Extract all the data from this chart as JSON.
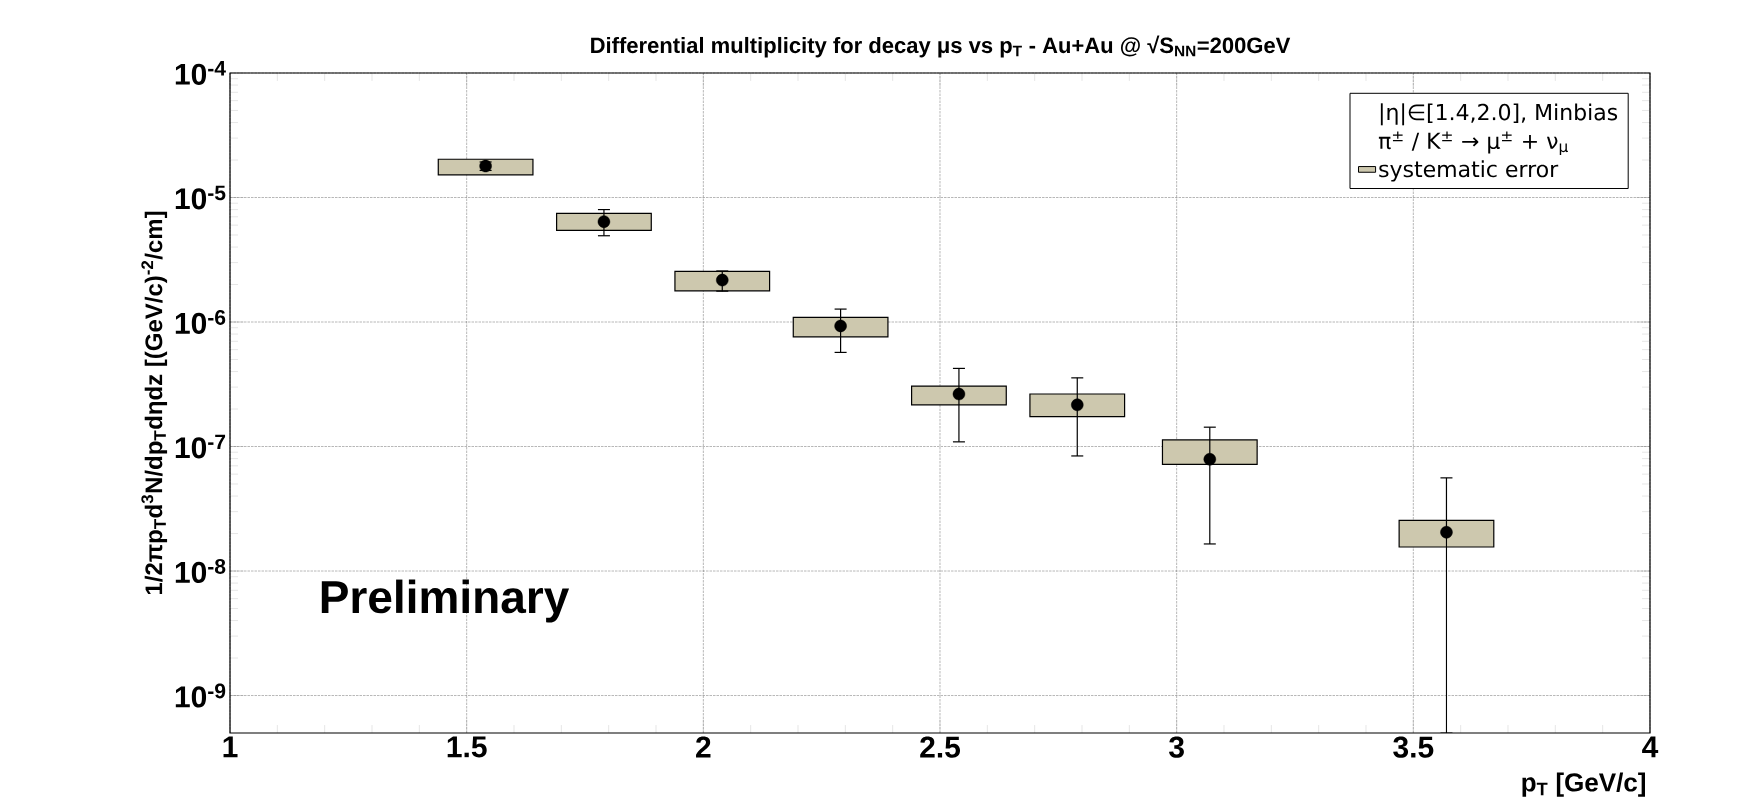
{
  "chart_data": {
    "type": "scatter",
    "title": "Differential multiplicity for decay μs vs p$_{T}$ - Au+Au @ √S$_{NN}$=200GeV",
    "xlabel": "p$_{T}$ [GeV/c]",
    "ylabel": "1/2πp$_{T}$d$^{3}$N/dp$_{T}$dηdz [(GeV/c)$^{-2}$/cm]",
    "annotations": [
      "|η|∈[1.4,2.0], Minbias",
      "π$^{±}$ / K$^{±}$ → μ$^{±}$ + ν$_{μ}$",
      "Preliminary"
    ],
    "log": "y",
    "grid": true,
    "legend": "top right",
    "marker": "circle",
    "xlim": [
      1,
      4
    ],
    "ylim": [
      5e-10,
      0.0001
    ],
    "xticks": [
      1,
      1.5,
      2,
      2.5,
      3,
      3.5,
      4
    ],
    "yticks": [
      {
        "value": 1e-09,
        "label": "10$^{-9}$"
      },
      {
        "value": 1e-08,
        "label": "10$^{-8}$"
      },
      {
        "value": 1e-07,
        "label": "10$^{-7}$"
      },
      {
        "value": 1e-06,
        "label": "10$^{-6}$"
      },
      {
        "value": 1e-05,
        "label": "10$^{-5}$"
      },
      {
        "value": 0.0001,
        "label": "10$^{-4}$"
      }
    ],
    "series": [
      {
        "type": "bar",
        "name": "systematic error",
        "color": "#cdc8ae",
        "x": [
          1.54,
          1.79,
          2.04,
          2.29,
          2.54,
          2.79,
          3.07,
          3.57
        ],
        "base": [
          1.52e-05,
          5.45e-06,
          1.78e-06,
          7.6e-07,
          2.16e-07,
          1.74e-07,
          7.2e-08,
          1.56e-08
        ],
        "values": [
          5.1e-06,
          2e-06,
          7.7e-07,
          3.3e-07,
          9e-08,
          9e-08,
          4.1e-08,
          9.9e-09
        ]
      },
      {
        "color": "#000000",
        "x": [
          1.54,
          1.79,
          2.04,
          2.29,
          2.54,
          2.79,
          3.07,
          3.57
        ],
        "values": [
          1.79e-05,
          6.4e-06,
          2.17e-06,
          9.3e-07,
          2.64e-07,
          2.16e-07,
          7.9e-08,
          2.05e-08
        ],
        "errors": [
          [
            1.65e-05,
            1.93e-05
          ],
          [
            4.93e-06,
            8e-06
          ],
          [
            1.77e-06,
            2.57e-06
          ],
          [
            5.7e-07,
            1.27e-06
          ],
          [
            1.09e-07,
            4.24e-07
          ],
          [
            8.4e-08,
            3.56e-07
          ],
          [
            1.65e-08,
            1.43e-07
          ],
          [
            5e-10,
            5.6e-08
          ]
        ]
      }
    ]
  }
}
